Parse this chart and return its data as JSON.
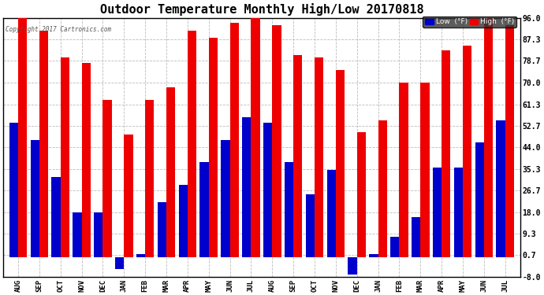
{
  "title": "Outdoor Temperature Monthly High/Low 20170818",
  "copyright": "Copyright 2017 Cartronics.com",
  "categories": [
    "AUG",
    "SEP",
    "OCT",
    "NOV",
    "DEC",
    "JAN",
    "FEB",
    "MAR",
    "APR",
    "MAY",
    "JUN",
    "JUL",
    "AUG",
    "SEP",
    "OCT",
    "NOV",
    "DEC",
    "JAN",
    "FEB",
    "MAR",
    "APR",
    "MAY",
    "JUN",
    "JUL"
  ],
  "high_values": [
    96,
    91,
    80,
    78,
    63,
    49,
    63,
    68,
    91,
    88,
    94,
    97,
    93,
    81,
    80,
    75,
    50,
    55,
    70,
    70,
    83,
    85,
    96,
    93
  ],
  "low_values": [
    54,
    47,
    32,
    18,
    18,
    -5,
    1,
    22,
    29,
    38,
    47,
    56,
    54,
    38,
    25,
    35,
    -7,
    1,
    8,
    16,
    36,
    36,
    46,
    55
  ],
  "ylim": [
    -8.0,
    96.0
  ],
  "yticks": [
    -8.0,
    0.7,
    9.3,
    18.0,
    26.7,
    35.3,
    44.0,
    52.7,
    61.3,
    70.0,
    78.7,
    87.3,
    96.0
  ],
  "bar_width": 0.42,
  "high_color": "#ee0000",
  "low_color": "#0000cc",
  "bg_color": "#ffffff",
  "plot_bg_color": "#ffffff",
  "grid_color": "#aaaaaa",
  "title_fontsize": 11,
  "legend_low_label": "Low  (°F)",
  "legend_high_label": "High  (°F)"
}
